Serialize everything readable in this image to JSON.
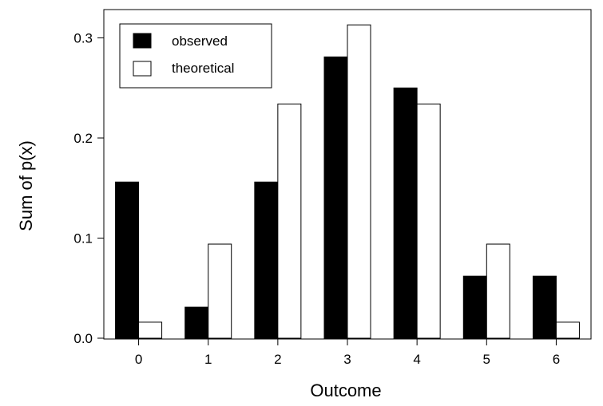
{
  "chart_data": {
    "type": "bar",
    "title": "",
    "xlabel": "Outcome",
    "ylabel": "Sum of p(x)",
    "categories": [
      "0",
      "1",
      "2",
      "3",
      "4",
      "5",
      "6"
    ],
    "series": [
      {
        "name": "observed",
        "values": [
          0.156,
          0.031,
          0.156,
          0.281,
          0.25,
          0.062,
          0.062
        ],
        "color": "#000000"
      },
      {
        "name": "theoretical",
        "values": [
          0.016,
          0.094,
          0.234,
          0.313,
          0.234,
          0.094,
          0.016
        ],
        "color": "#ffffff"
      }
    ],
    "ylim": [
      0,
      0.34
    ],
    "yticks": [
      0.0,
      0.1,
      0.2,
      0.3
    ],
    "ytick_labels": [
      "0.0",
      "0.1",
      "0.2",
      "0.3"
    ],
    "grid": false,
    "legend_position": "top-left"
  }
}
